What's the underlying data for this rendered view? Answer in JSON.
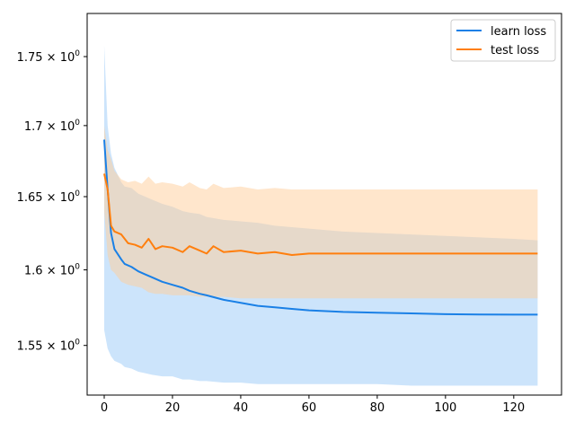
{
  "chart_data": {
    "type": "line",
    "title": "",
    "xlabel": "",
    "ylabel": "",
    "xlim": [
      -5,
      134
    ],
    "ylim": [
      1.518,
      1.782
    ],
    "yscale": "log",
    "grid": false,
    "legend_position": "top-right",
    "x_ticks": [
      0,
      20,
      40,
      60,
      80,
      100,
      120
    ],
    "x_tick_labels": [
      "0",
      "20",
      "40",
      "60",
      "80",
      "100",
      "120"
    ],
    "y_ticks": [
      1.55,
      1.6,
      1.65,
      1.7,
      1.75
    ],
    "y_tick_labels": [
      {
        "mantissa": "1.55",
        "base": "10",
        "exp": "0"
      },
      {
        "mantissa": "1.6",
        "base": "10",
        "exp": "0"
      },
      {
        "mantissa": "1.65",
        "base": "10",
        "exp": "0"
      },
      {
        "mantissa": "1.7",
        "base": "10",
        "exp": "0"
      },
      {
        "mantissa": "1.75",
        "base": "10",
        "exp": "0"
      }
    ],
    "series": [
      {
        "name": "learn loss",
        "color": "#1a80e6",
        "band_color": "#99c9f7",
        "x": [
          0,
          1,
          2,
          3,
          5,
          6,
          8,
          10,
          12,
          14,
          17,
          20,
          23,
          25,
          28,
          30,
          35,
          40,
          45,
          50,
          55,
          60,
          70,
          80,
          90,
          100,
          110,
          120,
          127
        ],
        "mean": [
          1.69,
          1.655,
          1.625,
          1.614,
          1.607,
          1.604,
          1.602,
          1.599,
          1.597,
          1.595,
          1.592,
          1.59,
          1.588,
          1.586,
          1.584,
          1.583,
          1.58,
          1.578,
          1.576,
          1.575,
          1.574,
          1.573,
          1.572,
          1.5715,
          1.571,
          1.5705,
          1.5703,
          1.5702,
          1.5702
        ],
        "lower": [
          1.56,
          1.548,
          1.543,
          1.54,
          1.538,
          1.536,
          1.535,
          1.533,
          1.532,
          1.531,
          1.53,
          1.53,
          1.528,
          1.528,
          1.527,
          1.527,
          1.526,
          1.526,
          1.525,
          1.525,
          1.525,
          1.525,
          1.525,
          1.525,
          1.524,
          1.524,
          1.524,
          1.524,
          1.524
        ],
        "upper": [
          1.758,
          1.7,
          1.68,
          1.67,
          1.66,
          1.657,
          1.656,
          1.652,
          1.65,
          1.648,
          1.645,
          1.643,
          1.64,
          1.639,
          1.638,
          1.636,
          1.634,
          1.633,
          1.632,
          1.63,
          1.629,
          1.628,
          1.626,
          1.625,
          1.624,
          1.623,
          1.622,
          1.621,
          1.62
        ]
      },
      {
        "name": "test loss",
        "color": "#ff7f0e",
        "band_color": "#ffcd99",
        "x": [
          0,
          1,
          2,
          3,
          5,
          7,
          9,
          11,
          13,
          15,
          17,
          20,
          23,
          25,
          28,
          30,
          32,
          35,
          40,
          45,
          50,
          55,
          60,
          70,
          80,
          90,
          100,
          110,
          120,
          127
        ],
        "mean": [
          1.666,
          1.655,
          1.63,
          1.626,
          1.624,
          1.618,
          1.617,
          1.615,
          1.621,
          1.614,
          1.616,
          1.615,
          1.612,
          1.616,
          1.613,
          1.611,
          1.616,
          1.612,
          1.613,
          1.611,
          1.612,
          1.61,
          1.611,
          1.611,
          1.611,
          1.611,
          1.611,
          1.611,
          1.611,
          1.611
        ],
        "lower": [
          1.64,
          1.61,
          1.6,
          1.598,
          1.592,
          1.59,
          1.589,
          1.588,
          1.585,
          1.584,
          1.584,
          1.583,
          1.583,
          1.583,
          1.582,
          1.582,
          1.582,
          1.582,
          1.581,
          1.581,
          1.581,
          1.581,
          1.581,
          1.581,
          1.581,
          1.581,
          1.581,
          1.581,
          1.581,
          1.581
        ],
        "upper": [
          1.7,
          1.683,
          1.676,
          1.668,
          1.662,
          1.66,
          1.661,
          1.659,
          1.664,
          1.659,
          1.66,
          1.659,
          1.657,
          1.66,
          1.656,
          1.655,
          1.659,
          1.656,
          1.657,
          1.655,
          1.656,
          1.655,
          1.655,
          1.655,
          1.655,
          1.655,
          1.655,
          1.655,
          1.655,
          1.655
        ]
      }
    ]
  }
}
